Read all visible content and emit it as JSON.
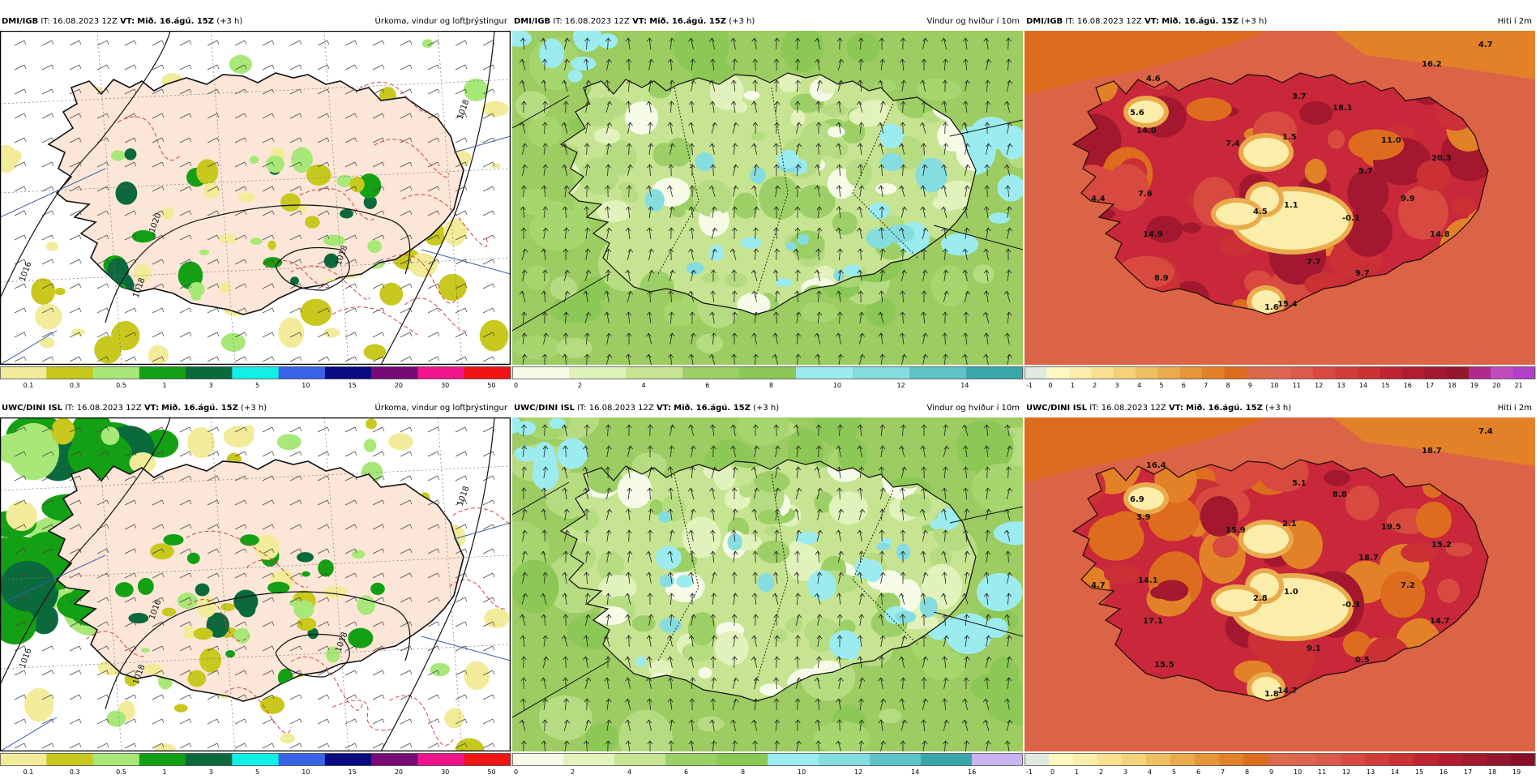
{
  "panels": [
    {
      "model": "DMI/IGB",
      "run": "IT: 16.08.2023 12Z",
      "valid_prefix": "VT:",
      "valid": "Mið. 16.ágú. 15Z",
      "lead": "(+3 h)",
      "field": "Úrkoma, vindur og loftþrýstingur",
      "type": "precip",
      "isobar_labels": [
        "1016",
        "1018",
        "1018",
        "1018",
        "1020"
      ]
    },
    {
      "model": "DMI/IGB",
      "run": "IT: 16.08.2023 12Z",
      "valid_prefix": "VT:",
      "valid": "Mið. 16.ágú. 15Z",
      "lead": "(+3 h)",
      "field": "Vindur og hviður í 10m",
      "type": "wind"
    },
    {
      "model": "DMI/IGB",
      "run": "IT: 16.08.2023 12Z",
      "valid_prefix": "VT:",
      "valid": "Mið. 16.ágú. 15Z",
      "lead": "(+3 h)",
      "field": "Hiti í 2m",
      "type": "temp",
      "temp_labels": [
        "4.7",
        "16.2",
        "4.6",
        "3.7",
        "5.6",
        "18.1",
        "14.0",
        "11.0",
        "1.5",
        "20.3",
        "7.4",
        "5.7",
        "7.6",
        "9.9",
        "4.4",
        "4.5",
        "1.1",
        "-0.1",
        "14.9",
        "14.8",
        "7.7",
        "8.9",
        "9.7",
        "1.6",
        "15.4"
      ]
    },
    {
      "model": "UWC/DINI ISL",
      "run": "IT: 16.08.2023 12Z",
      "valid_prefix": "VT:",
      "valid": "Mið. 16.ágú. 15Z",
      "lead": "(+3 h)",
      "field": "Úrkoma, vindur og loftþrýstingur",
      "type": "precip",
      "isobar_labels": [
        "1016",
        "1018",
        "1018",
        "1018",
        "1016"
      ]
    },
    {
      "model": "UWC/DINI ISL",
      "run": "IT: 16.08.2023 12Z",
      "valid_prefix": "VT:",
      "valid": "Mið. 16.ágú. 15Z",
      "lead": "(+3 h)",
      "field": "Vindur og hviður í 10m",
      "type": "wind"
    },
    {
      "model": "UWC/DINI ISL",
      "run": "IT: 16.08.2023 12Z",
      "valid_prefix": "VT:",
      "valid": "Mið. 16.ágú. 15Z",
      "lead": "(+3 h)",
      "field": "Hiti í 2m",
      "type": "temp",
      "temp_labels": [
        "7.4",
        "18.7",
        "16.4",
        "5.1",
        "6.9",
        "8.8",
        "3.9",
        "19.5",
        "2.1",
        "15.2",
        "15.9",
        "18.7",
        "14.1",
        "7.2",
        "4.7",
        "2.8",
        "1.0",
        "-0.3",
        "17.1",
        "14.7",
        "9.1",
        "15.5",
        "0.5",
        "1.8",
        "14.7"
      ]
    }
  ],
  "scales": {
    "precip": {
      "ticks": [
        "0.1",
        "0.3",
        "0.5",
        "1",
        "3",
        "5",
        "10",
        "15",
        "20",
        "30",
        "50"
      ],
      "colors": [
        "#f2ec9a",
        "#c8c81e",
        "#a8e878",
        "#14a014",
        "#0a6a3c",
        "#12f0e6",
        "#3a64e6",
        "#0a0a82",
        "#780a78",
        "#f0148c",
        "#f01414"
      ]
    },
    "wind_top": {
      "ticks": [
        "0",
        "2",
        "4",
        "6",
        "8",
        "10",
        "12",
        "14"
      ],
      "colors": [
        "#f6fbe8",
        "#e2f2bc",
        "#c6e492",
        "#9cd066",
        "#8cc855",
        "#9cecef",
        "#86dde0",
        "#5fc4c6",
        "#3aa8aa"
      ]
    },
    "wind_bottom": {
      "ticks": [
        "0",
        "2",
        "4",
        "6",
        "8",
        "10",
        "12",
        "14",
        "16"
      ],
      "colors": [
        "#f6fbe8",
        "#e2f2bc",
        "#c6e492",
        "#9cd066",
        "#8cc855",
        "#9cecef",
        "#86dde0",
        "#5fc4c6",
        "#3aa8aa",
        "#c8b4f0"
      ]
    },
    "temp_top": {
      "ticks": [
        "-1",
        "0",
        "1",
        "2",
        "3",
        "4",
        "5",
        "6",
        "7",
        "8",
        "9",
        "10",
        "11",
        "12",
        "13",
        "14",
        "15",
        "16",
        "17",
        "18",
        "19",
        "20",
        "21"
      ],
      "colors": [
        "#dfe9de",
        "#fdf7c0",
        "#fbedaa",
        "#f8e08e",
        "#f4d27a",
        "#efc062",
        "#eaab4c",
        "#e69638",
        "#e28128",
        "#de6c1e",
        "#da6a4a",
        "#de6650",
        "#dc5a4a",
        "#d84a40",
        "#d23c38",
        "#ca3034",
        "#c02432",
        "#b21c30",
        "#a3182e",
        "#93162c",
        "#b02a8c",
        "#c04cc0",
        "#b040c8"
      ]
    },
    "temp_bottom": {
      "ticks": [
        "-1",
        "0",
        "1",
        "2",
        "3",
        "4",
        "5",
        "6",
        "7",
        "8",
        "9",
        "10",
        "11",
        "12",
        "13",
        "14",
        "15",
        "16",
        "17",
        "18",
        "19"
      ],
      "colors": [
        "#dfe9de",
        "#fdf7c0",
        "#fbedaa",
        "#f8e08e",
        "#f4d27a",
        "#efc062",
        "#eaab4c",
        "#e69638",
        "#e28128",
        "#de6c1e",
        "#da6a4a",
        "#de6650",
        "#dc5a4a",
        "#d84a40",
        "#d23c38",
        "#ca3034",
        "#c02432",
        "#b21c30",
        "#a3182e",
        "#93162c",
        "#8a0e28"
      ]
    }
  }
}
